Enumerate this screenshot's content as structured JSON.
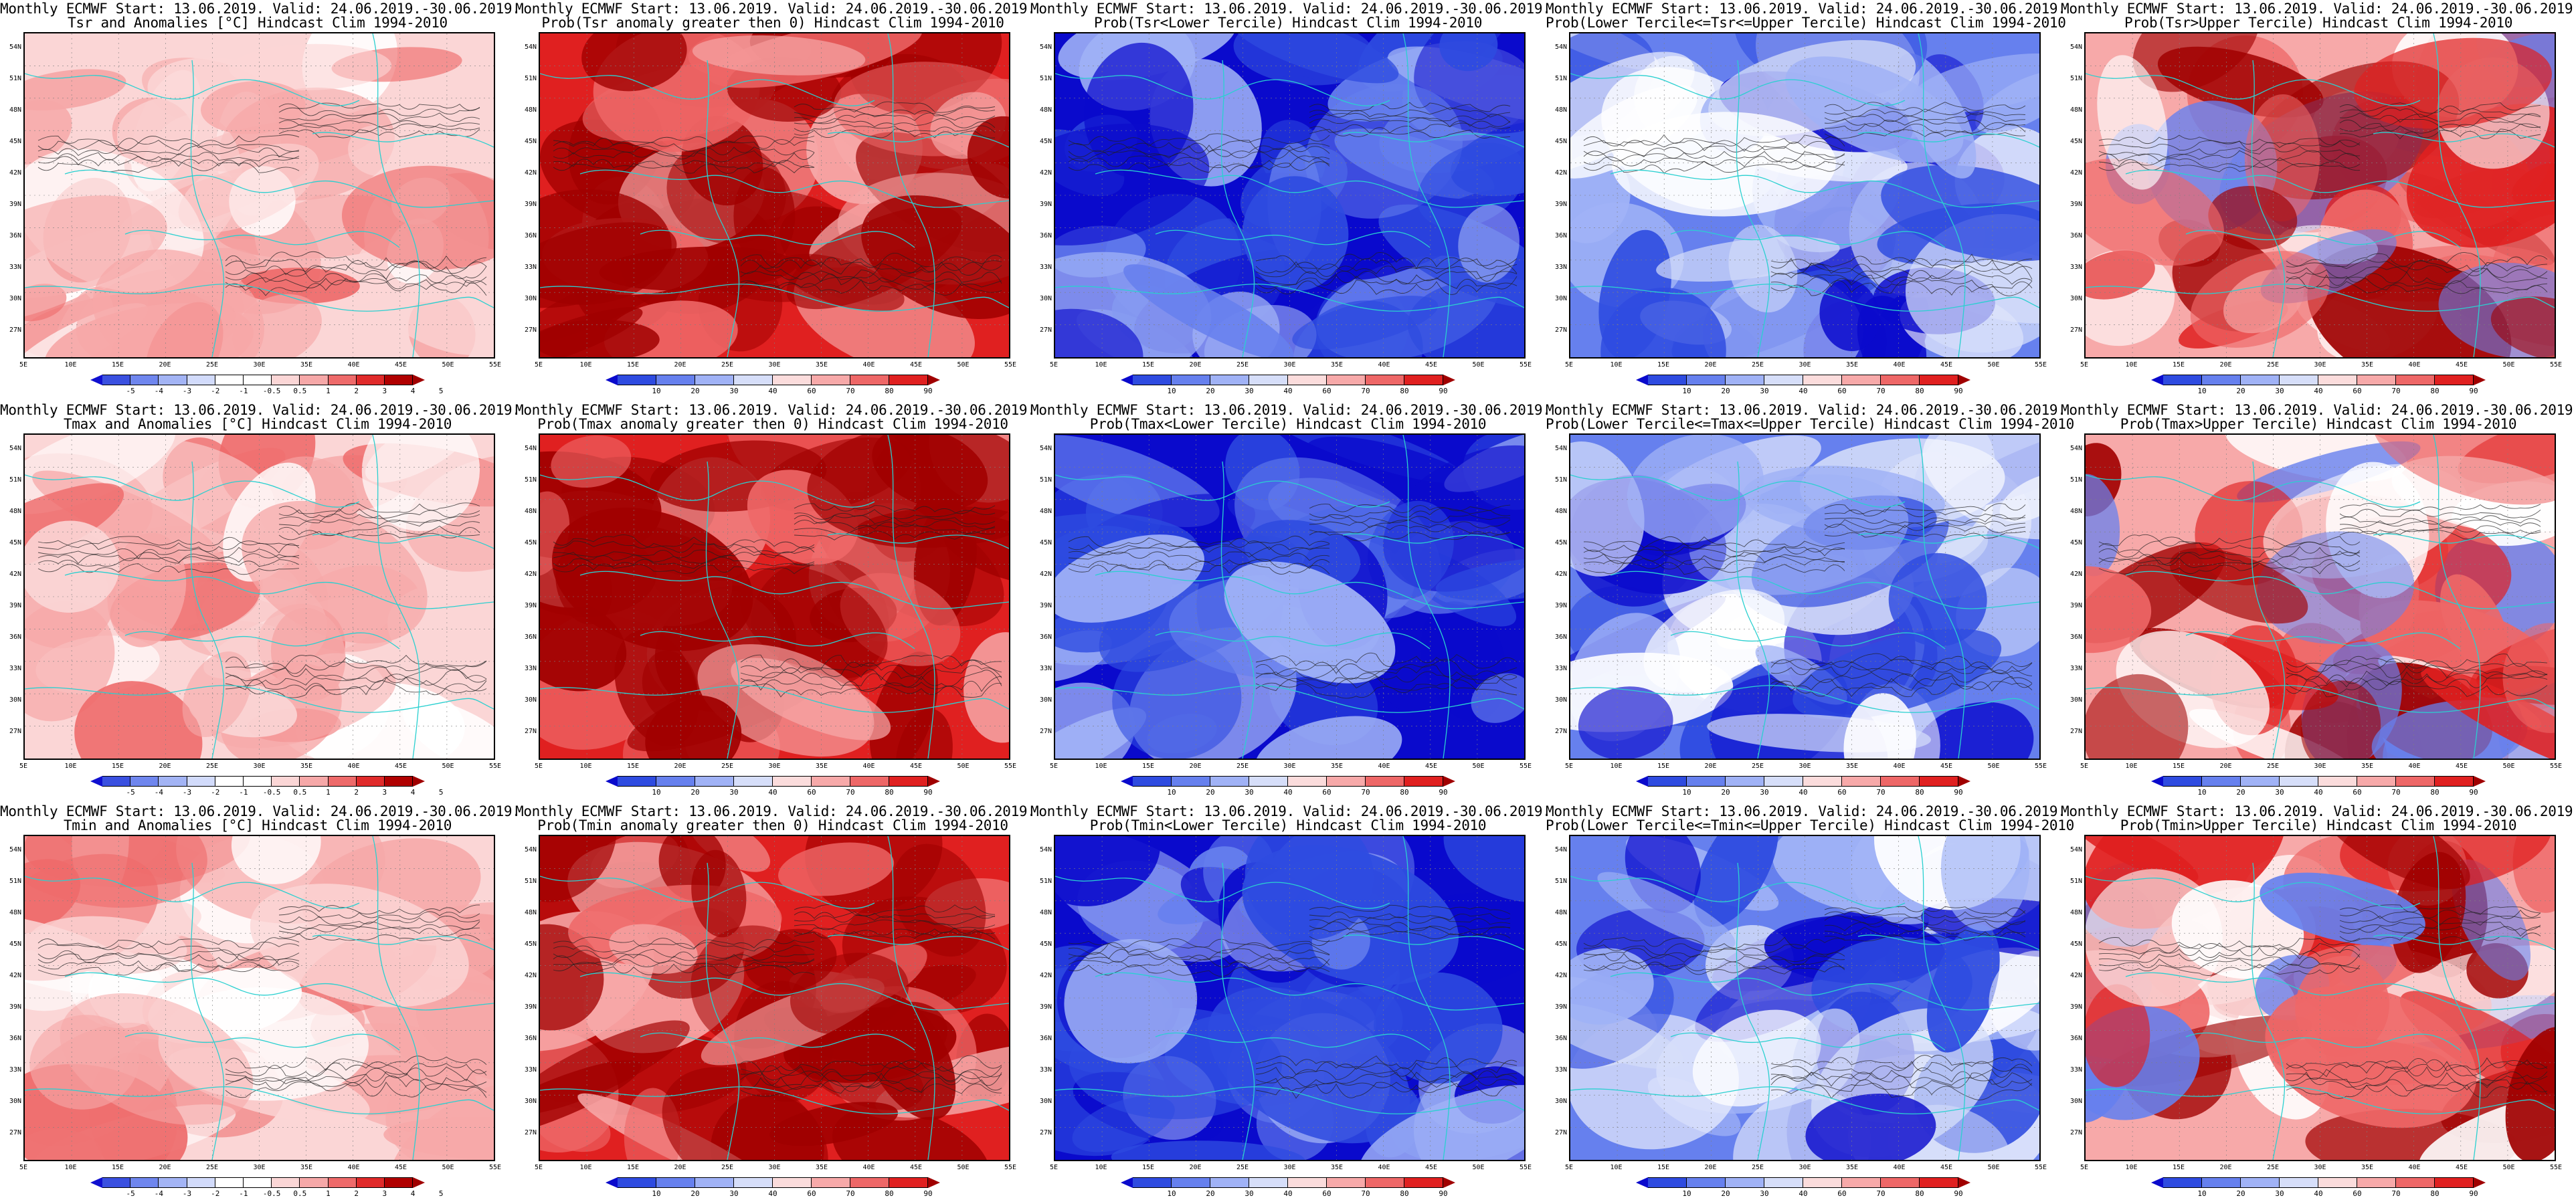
{
  "header_line": "Monthly ECMWF Start: 13.06.2019. Valid: 24.06.2019.-30.06.2019.",
  "lat_labels": [
    "54N",
    "51N",
    "48N",
    "45N",
    "42N",
    "39N",
    "36N",
    "33N",
    "30N",
    "27N"
  ],
  "lon_labels": [
    "5E",
    "10E",
    "15E",
    "20E",
    "25E",
    "30E",
    "35E",
    "40E",
    "45E",
    "50E",
    "55E"
  ],
  "colors": {
    "anom_bins": [
      "#1010d0",
      "#3a50e0",
      "#6f86ee",
      "#a3b4f5",
      "#d2dbfb",
      "#ffffff",
      "#ffffff",
      "#fbd6d6",
      "#f6a8a8",
      "#ee6a6a",
      "#e02a2a",
      "#b00000",
      "#a00000"
    ],
    "prob_bins": [
      "#0a0acc",
      "#2e4be0",
      "#6680ee",
      "#a0b2f6",
      "#d6def9",
      "#fbdcdc",
      "#f7a9a9",
      "#ee6767",
      "#e02020",
      "#a00000"
    ],
    "coast": "#2ad0d0",
    "contour": "#202020"
  },
  "anom_scale": [
    "-5",
    "-4",
    "-3",
    "-2",
    "-1",
    "-0.5",
    "0.5",
    "1",
    "2",
    "3",
    "4",
    "5"
  ],
  "prob_scale": [
    "10",
    "20",
    "30",
    "40",
    "60",
    "70",
    "80",
    "90"
  ],
  "panels": [
    {
      "title": "Tsr and Anomalies [°C] Hindcast Clim 1994-2010",
      "kind": "anom",
      "theme": "anom-mild"
    },
    {
      "title": "Prob(Tsr anomaly greater then 0) Hindcast Clim 1994-2010",
      "kind": "prob",
      "theme": "red-strong"
    },
    {
      "title": "Prob(Tsr<Lower Tercile) Hindcast Clim 1994-2010",
      "kind": "prob",
      "theme": "blue-strong"
    },
    {
      "title": "Prob(Lower Tercile<=Tsr<=Upper Tercile) Hindcast Clim 1994-2010",
      "kind": "prob",
      "theme": "blue-mixed"
    },
    {
      "title": "Prob(Tsr>Upper Tercile) Hindcast Clim 1994-2010",
      "kind": "prob",
      "theme": "red-mixed"
    },
    {
      "title": "Tmax and Anomalies [°C] Hindcast Clim 1994-2010",
      "kind": "anom",
      "theme": "anom-mild"
    },
    {
      "title": "Prob(Tmax anomaly greater then 0) Hindcast Clim 1994-2010",
      "kind": "prob",
      "theme": "red-strong"
    },
    {
      "title": "Prob(Tmax<Lower Tercile) Hindcast Clim 1994-2010",
      "kind": "prob",
      "theme": "blue-strong"
    },
    {
      "title": "Prob(Lower Tercile<=Tmax<=Upper Tercile) Hindcast Clim 1994-2010",
      "kind": "prob",
      "theme": "blue-mixed"
    },
    {
      "title": "Prob(Tmax>Upper Tercile) Hindcast Clim 1994-2010",
      "kind": "prob",
      "theme": "red-mixed"
    },
    {
      "title": "Tmin and Anomalies [°C] Hindcast Clim 1994-2010",
      "kind": "anom",
      "theme": "anom-mild"
    },
    {
      "title": "Prob(Tmin anomaly greater then 0) Hindcast Clim 1994-2010",
      "kind": "prob",
      "theme": "red-strong"
    },
    {
      "title": "Prob(Tmin<Lower Tercile) Hindcast Clim 1994-2010",
      "kind": "prob",
      "theme": "blue-strong"
    },
    {
      "title": "Prob(Lower Tercile<=Tmin<=Upper Tercile) Hindcast Clim 1994-2010",
      "kind": "prob",
      "theme": "blue-mixed"
    },
    {
      "title": "Prob(Tmin>Upper Tercile) Hindcast Clim 1994-2010",
      "kind": "prob",
      "theme": "red-mixed"
    }
  ]
}
